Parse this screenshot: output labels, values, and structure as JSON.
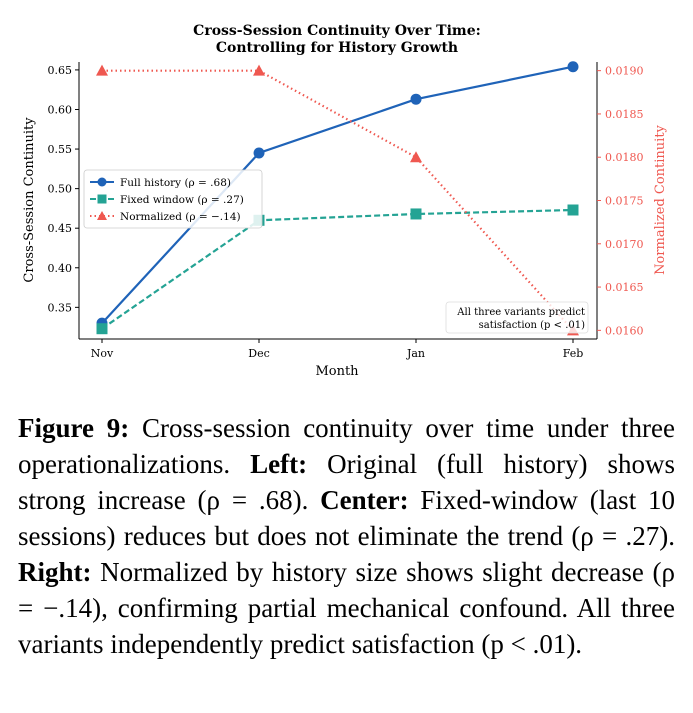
{
  "chart_data": {
    "type": "line",
    "title_lines": [
      "Cross-Session Continuity Over Time:",
      "Controlling for History Growth"
    ],
    "xlabel": "Month",
    "ylabel_left": "Cross-Session Continuity",
    "ylabel_right": "Normalized Continuity",
    "categories": [
      "Nov",
      "Dec",
      "Jan",
      "Feb"
    ],
    "ylim_left": [
      0.31,
      0.66
    ],
    "yticks_left": [
      "0.35",
      "0.40",
      "0.45",
      "0.50",
      "0.55",
      "0.60",
      "0.65"
    ],
    "ylim_right": [
      0.0159,
      0.0191
    ],
    "yticks_right": [
      "0.0160",
      "0.0165",
      "0.0170",
      "0.0175",
      "0.0180",
      "0.0185",
      "0.0190"
    ],
    "series": [
      {
        "name": "Full history (ρ = .68)",
        "axis": "left",
        "marker": "circle",
        "style": "solid",
        "color": "#1f63b8",
        "values": [
          0.33,
          0.545,
          0.613,
          0.654
        ]
      },
      {
        "name": "Fixed window (ρ = .27)",
        "axis": "left",
        "marker": "square",
        "style": "dashed",
        "color": "#24a394",
        "values": [
          0.323,
          0.46,
          0.468,
          0.473
        ]
      },
      {
        "name": "Normalized (ρ = −.14)",
        "axis": "right",
        "marker": "triangle",
        "style": "dotted",
        "color": "#ef5850",
        "values": [
          0.019,
          0.019,
          0.018,
          0.016
        ]
      }
    ],
    "legend_position": "center-left",
    "annotation_lines": [
      "All three variants predict",
      "satisfaction (p < .01)"
    ],
    "grid": false
  },
  "caption": {
    "figure_label": "Figure 9:",
    "intro": " Cross-session continuity over time under three operationalizations. ",
    "left_label": "Left:",
    "left_text": " Original (full history) shows strong increase (ρ = .68). ",
    "center_label": "Center:",
    "center_text": " Fixed-window (last 10 sessions) reduces but does not eliminate the trend (ρ = .27). ",
    "right_label": "Right:",
    "right_text": " Normalized by history size shows slight decrease (ρ = −.14), confirming partial mechanical confound. All three variants independently predict satisfaction (p < .01)."
  }
}
